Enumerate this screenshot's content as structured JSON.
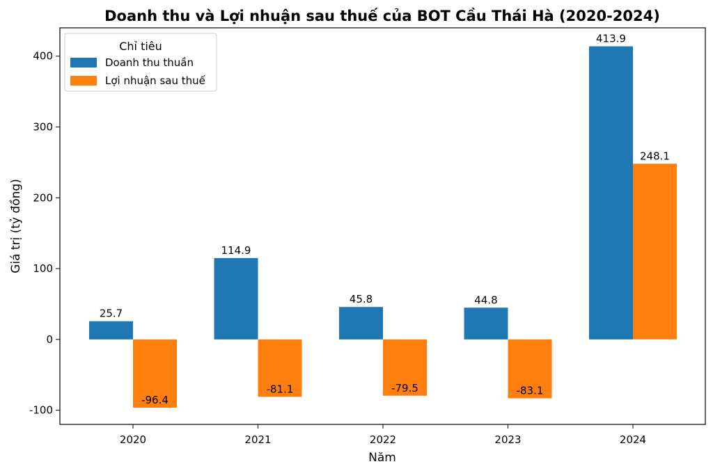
{
  "chart_data": {
    "type": "bar",
    "title": "Doanh thu và Lợi nhuận sau thuế của BOT Cầu Thái Hà (2020-2024)",
    "xlabel": "Năm",
    "ylabel": "Giá trị (tỷ đồng)",
    "categories": [
      "2020",
      "2021",
      "2022",
      "2023",
      "2024"
    ],
    "series": [
      {
        "name": "Doanh thu thuần",
        "values": [
          25.7,
          114.9,
          45.8,
          44.8,
          413.9
        ],
        "color": "#1f77b4"
      },
      {
        "name": "Lợi nhuận sau thuế",
        "values": [
          -96.4,
          -81.1,
          -79.5,
          -83.1,
          248.1
        ],
        "color": "#ff7f0e"
      }
    ],
    "data_labels": {
      "series_0": [
        "25.7",
        "114.9",
        "45.8",
        "44.8",
        "413.9"
      ],
      "series_1": [
        "-96.4",
        "-81.1",
        "-79.5",
        "-83.1",
        "248.1"
      ]
    },
    "ylim": [
      -120,
      440
    ],
    "yticks": [
      -100,
      0,
      100,
      200,
      300,
      400
    ],
    "ytick_labels": [
      "-100",
      "0",
      "100",
      "200",
      "300",
      "400"
    ],
    "grid": false,
    "legend": {
      "title": "Chỉ tiêu",
      "placement": "top-left"
    }
  }
}
